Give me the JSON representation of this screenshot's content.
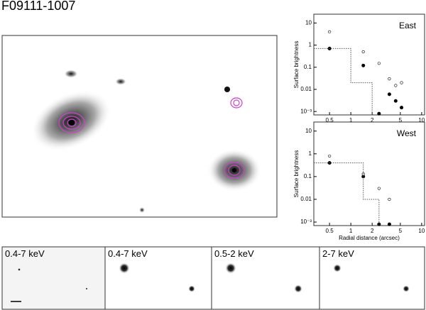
{
  "title": "F09111-1007",
  "chart_data": [
    {
      "type": "scatter",
      "title": "East",
      "ylabel": "Surface brightness",
      "log_x": true,
      "log_y": true,
      "xlim": [
        0.3,
        11
      ],
      "ylim": [
        0.0007,
        25
      ],
      "xticks": [
        0.5,
        1,
        2,
        5,
        10
      ],
      "yticks": [
        10,
        1,
        0.1,
        0.01,
        {
          "value": 0.001,
          "label": "10⁻³"
        }
      ],
      "series": [
        {
          "marker": "filled",
          "color": "#000000",
          "x": [
            0.5,
            1.5,
            2.5,
            3.5,
            4.3,
            5.2
          ],
          "values": [
            0.7,
            0.12,
            0.0008,
            0.006,
            0.003,
            0.0015
          ]
        },
        {
          "marker": "open",
          "color": "#000000",
          "x": [
            0.5,
            1.5,
            2.5,
            3.5,
            4.3,
            5.2
          ],
          "values": [
            4,
            0.5,
            0.15,
            0.03,
            0.015,
            0.02
          ]
        },
        {
          "marker": "dotted-line",
          "color": "#555555",
          "x": [
            0.3,
            1,
            1,
            2,
            2
          ],
          "values": [
            0.7,
            0.7,
            0.02,
            0.02,
            0.0007
          ]
        }
      ]
    },
    {
      "type": "scatter",
      "title": "West",
      "ylabel": "Surface brightness",
      "xlabel": "Radial distance (arcsec)",
      "log_x": true,
      "log_y": true,
      "xlim": [
        0.3,
        11
      ],
      "ylim": [
        0.0007,
        25
      ],
      "xticks": [
        0.5,
        1,
        2,
        5,
        10
      ],
      "yticks": [
        10,
        1,
        0.1,
        0.01,
        {
          "value": 0.001,
          "label": "10⁻³"
        }
      ],
      "series": [
        {
          "marker": "filled",
          "color": "#000000",
          "x": [
            0.5,
            1.5,
            2.5,
            3.5
          ],
          "values": [
            0.4,
            0.1,
            0.0008,
            0.0008
          ]
        },
        {
          "marker": "open",
          "color": "#000000",
          "x": [
            0.5,
            1.5,
            2.5,
            3.5
          ],
          "values": [
            0.8,
            0.13,
            0.03,
            0.01
          ]
        },
        {
          "marker": "dotted-line",
          "color": "#555555",
          "x": [
            0.3,
            1.5,
            1.5,
            2.5,
            2.5
          ],
          "values": [
            0.4,
            0.4,
            0.01,
            0.01,
            0.0007
          ]
        }
      ]
    }
  ],
  "panels": [
    "0.4-7 keV",
    "0.4-7 keV",
    "0.5-2 keV",
    "2-7 keV"
  ]
}
